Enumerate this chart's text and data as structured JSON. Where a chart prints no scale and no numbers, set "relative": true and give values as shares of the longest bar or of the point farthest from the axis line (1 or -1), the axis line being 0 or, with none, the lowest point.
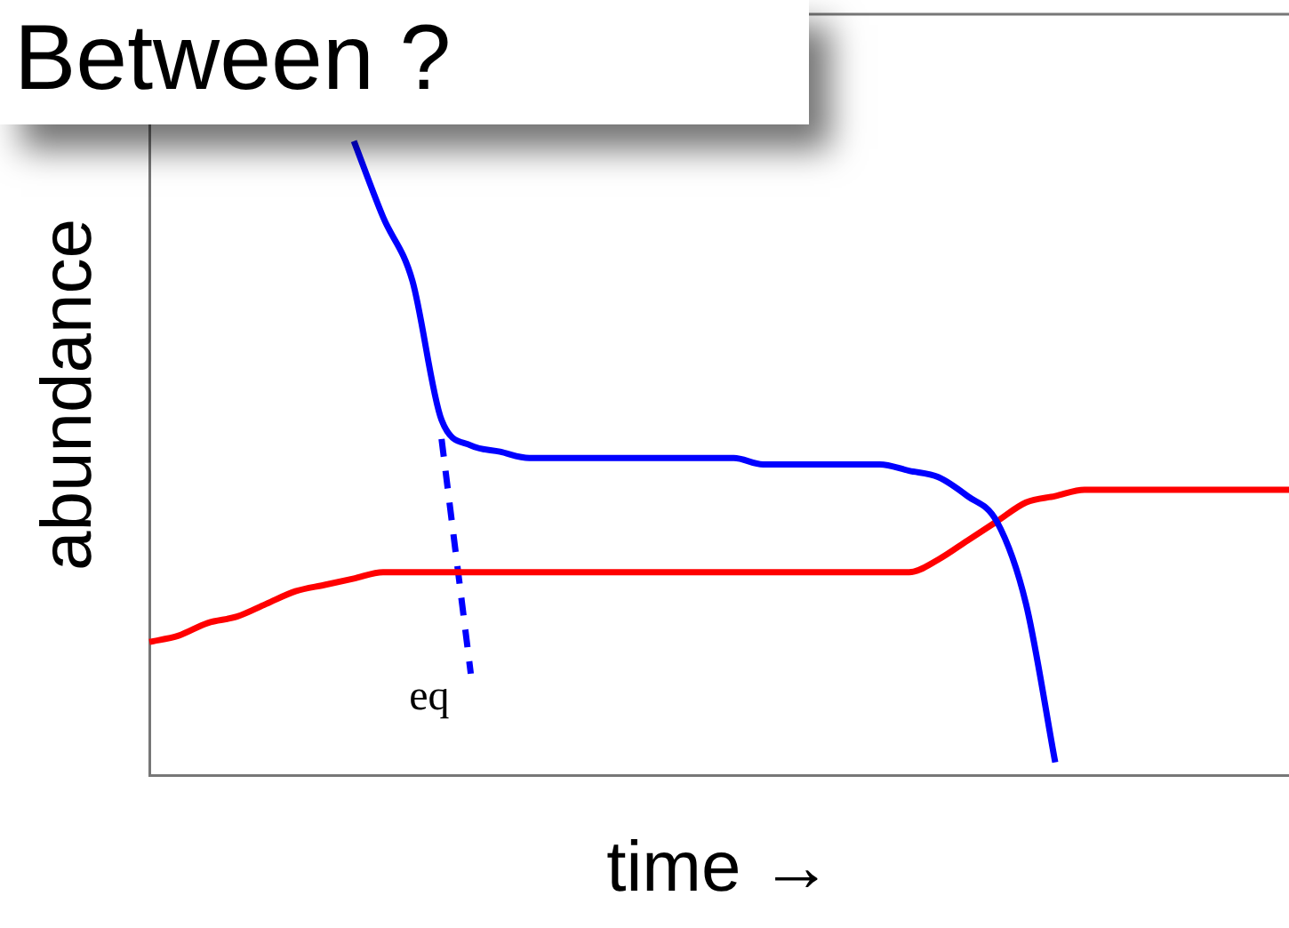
{
  "chart_data": {
    "type": "line",
    "relative": true,
    "xlabel": "time →",
    "ylabel": "abundance",
    "grid": false,
    "legend": false,
    "marker": "none",
    "categories": [
      null,
      null,
      null,
      null,
      null,
      null,
      null,
      null,
      null,
      null,
      null,
      null,
      null,
      null,
      null,
      null,
      null,
      null,
      null,
      null,
      null,
      null,
      null,
      null,
      null,
      null,
      null,
      null,
      null,
      null,
      null,
      null,
      null,
      null,
      null,
      null,
      null,
      null,
      null,
      null
    ],
    "series": [
      {
        "color": "#0000ff",
        "line_style": "solid",
        "values": [
          null,
          null,
          null,
          null,
          null,
          null,
          null,
          1.0,
          0.88,
          0.78,
          0.56,
          0.52,
          0.51,
          0.5,
          0.5,
          0.5,
          0.5,
          0.5,
          0.5,
          0.5,
          0.5,
          0.49,
          0.49,
          0.49,
          0.49,
          0.49,
          0.48,
          0.47,
          0.44,
          0.4,
          0.27,
          0.02,
          null,
          null,
          null,
          null,
          null,
          null,
          null,
          null
        ]
      },
      {
        "color": "#ff0000",
        "line_style": "solid",
        "values": [
          0.21,
          0.22,
          0.24,
          0.25,
          0.27,
          0.29,
          0.3,
          0.31,
          0.32,
          0.32,
          0.32,
          0.32,
          0.32,
          0.32,
          0.32,
          0.32,
          0.32,
          0.32,
          0.32,
          0.32,
          0.32,
          0.32,
          0.32,
          0.32,
          0.32,
          0.32,
          0.32,
          0.34,
          0.37,
          0.4,
          0.43,
          0.44,
          0.45,
          0.45,
          0.45,
          0.45,
          0.45,
          0.45,
          0.45,
          0.45
        ]
      },
      {
        "color": "#0000ff",
        "line_style": "dashed",
        "values": [
          null,
          null,
          null,
          null,
          null,
          null,
          null,
          null,
          null,
          null,
          0.53,
          0.16,
          null,
          null,
          null,
          null,
          null,
          null,
          null,
          null,
          null,
          null,
          null,
          null,
          null,
          null,
          null,
          null,
          null,
          null,
          null,
          null,
          null,
          null,
          null,
          null,
          null,
          null,
          null,
          null
        ]
      }
    ],
    "annotations": [
      "eq",
      "Between ?"
    ]
  }
}
